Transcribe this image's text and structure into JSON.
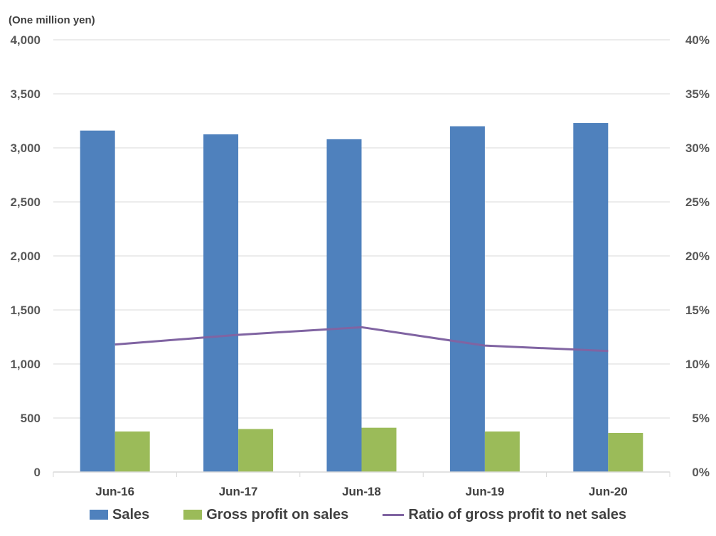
{
  "chart_data": {
    "type": "bar",
    "unit_label": "(One million yen)",
    "categories": [
      "Jun-16",
      "Jun-17",
      "Jun-18",
      "Jun-19",
      "Jun-20"
    ],
    "series": [
      {
        "name": "Sales",
        "type": "bar",
        "axis": "left",
        "color": "#4f81bd",
        "values": [
          3160,
          3125,
          3080,
          3200,
          3230
        ]
      },
      {
        "name": "Gross profit on sales",
        "type": "bar",
        "axis": "left",
        "color": "#9bbb59",
        "values": [
          375,
          398,
          410,
          375,
          362
        ]
      },
      {
        "name": "Ratio of gross profit to net sales",
        "type": "line",
        "axis": "right",
        "color": "#8064a2",
        "values": [
          11.8,
          12.7,
          13.4,
          11.7,
          11.2
        ]
      }
    ],
    "y_left": {
      "range": [
        0,
        4000
      ],
      "ticks": [
        "0",
        "500",
        "1,000",
        "1,500",
        "2,000",
        "2,500",
        "3,000",
        "3,500",
        "4,000"
      ]
    },
    "y_right": {
      "range": [
        0,
        40
      ],
      "ticks": [
        "0%",
        "5%",
        "10%",
        "15%",
        "20%",
        "25%",
        "30%",
        "35%",
        "40%"
      ]
    },
    "grid": true,
    "legend_position": "bottom"
  }
}
